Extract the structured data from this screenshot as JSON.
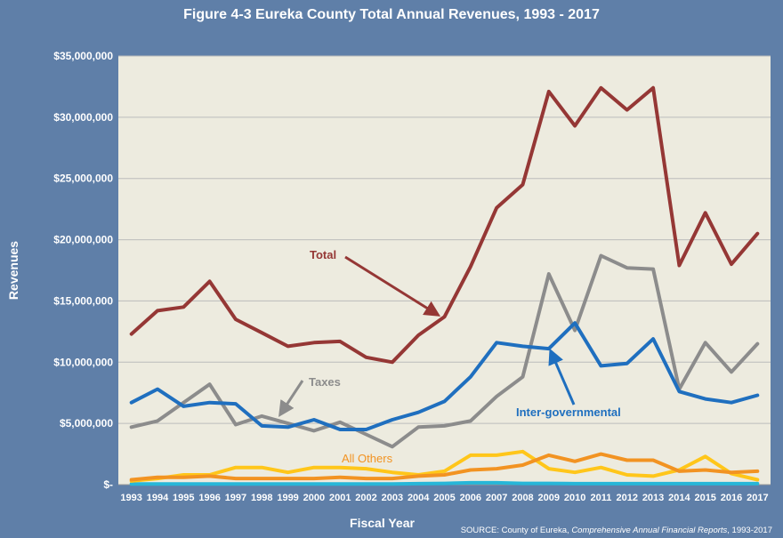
{
  "title": "Figure 4-3 Eureka County Total Annual Revenues, 1993 - 2017",
  "source": {
    "prefix": "SOURCE: County of Eureka, ",
    "publication": "Comprehensive Annual Financial Reports",
    "suffix": ", 1993-2017"
  },
  "colors": {
    "background": "#5f7fa8",
    "plot_area": "#edebdf",
    "grid": "#bcbcbc",
    "total": "#953735",
    "taxes": "#8c8c8c",
    "intergovernmental": "#1f6fbf",
    "all_others": "#f29322",
    "yellow_series": "#ffc61a",
    "cyan_series": "#27b6d8"
  },
  "chart_data": {
    "type": "line",
    "xlabel": "Fiscal Year",
    "ylabel": "Revenues",
    "ylim": [
      0,
      35000000
    ],
    "yticks": [
      0,
      5000000,
      10000000,
      15000000,
      20000000,
      25000000,
      30000000,
      35000000
    ],
    "ytick_labels": [
      "$-",
      "$5,000,000",
      "$10,000,000",
      "$15,000,000",
      "$20,000,000",
      "$25,000,000",
      "$30,000,000",
      "$35,000,000"
    ],
    "grid": true,
    "x": [
      "1993",
      "1994",
      "1995",
      "1996",
      "1997",
      "1998",
      "1999",
      "2000",
      "2001",
      "2002",
      "2003",
      "2004",
      "2005",
      "2006",
      "2007",
      "2008",
      "2009",
      "2010",
      "2011",
      "2012",
      "2013",
      "2014",
      "2015",
      "2016",
      "2017"
    ],
    "series": [
      {
        "name": "Total",
        "color": "#953735",
        "values": [
          12300000,
          14200000,
          14500000,
          16600000,
          13500000,
          12400000,
          11300000,
          11600000,
          11700000,
          10400000,
          10000000,
          12200000,
          13700000,
          17800000,
          22600000,
          24500000,
          32100000,
          29300000,
          32400000,
          30600000,
          32400000,
          17900000,
          22200000,
          18000000,
          20500000
        ]
      },
      {
        "name": "Taxes",
        "color": "#8c8c8c",
        "values": [
          4700000,
          5200000,
          6700000,
          8200000,
          4900000,
          5600000,
          5000000,
          4400000,
          5100000,
          4100000,
          3100000,
          4700000,
          4800000,
          5200000,
          7200000,
          8800000,
          17200000,
          12600000,
          18700000,
          17700000,
          17600000,
          7800000,
          11600000,
          9200000,
          11500000
        ]
      },
      {
        "name": "Inter-governmental",
        "color": "#1f6fbf",
        "values": [
          6700000,
          7800000,
          6400000,
          6700000,
          6600000,
          4800000,
          4700000,
          5300000,
          4500000,
          4500000,
          5300000,
          5900000,
          6800000,
          8800000,
          11600000,
          11300000,
          11100000,
          13200000,
          9700000,
          9900000,
          11900000,
          7600000,
          7000000,
          6700000,
          7300000
        ]
      },
      {
        "name": "All Others",
        "color": "#f29322",
        "values": [
          400000,
          600000,
          600000,
          700000,
          500000,
          500000,
          500000,
          500000,
          600000,
          500000,
          500000,
          700000,
          800000,
          1200000,
          1300000,
          1600000,
          2400000,
          1900000,
          2500000,
          2000000,
          2000000,
          1100000,
          1200000,
          1000000,
          1100000
        ]
      },
      {
        "color": "#ffc61a",
        "values": [
          300000,
          500000,
          800000,
          800000,
          1400000,
          1400000,
          1000000,
          1400000,
          1400000,
          1300000,
          1000000,
          800000,
          1100000,
          2400000,
          2400000,
          2700000,
          1300000,
          1000000,
          1400000,
          800000,
          700000,
          1200000,
          2300000,
          900000,
          400000
        ]
      },
      {
        "color": "#27b6d8",
        "values": [
          50000,
          50000,
          50000,
          50000,
          50000,
          50000,
          50000,
          50000,
          50000,
          50000,
          50000,
          80000,
          100000,
          150000,
          150000,
          100000,
          100000,
          80000,
          80000,
          80000,
          80000,
          80000,
          80000,
          80000,
          80000
        ]
      }
    ],
    "annotations": [
      {
        "text": "Total",
        "series": "Total"
      },
      {
        "text": "Taxes",
        "series": "Taxes"
      },
      {
        "text": "Inter-governmental",
        "series": "Inter-governmental"
      },
      {
        "text": "All Others",
        "series": "All Others"
      }
    ]
  }
}
